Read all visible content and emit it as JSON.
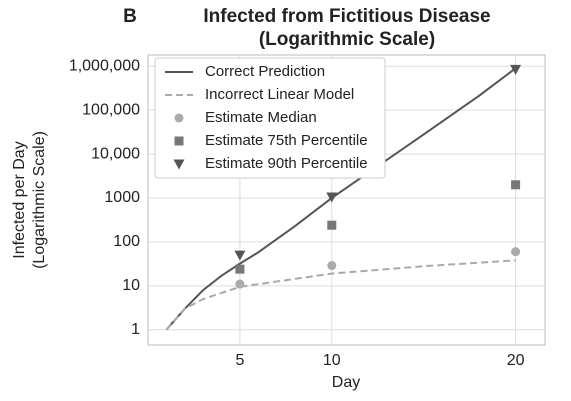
{
  "chart_data": {
    "type": "line",
    "panel_label": "B",
    "title": [
      "Infected from Fictitious Disease",
      "(Logarithmic Scale)"
    ],
    "y_label": [
      "Infected per Day",
      "(Logarithmic Scale)"
    ],
    "x_label": "Day",
    "xlim": [
      0,
      21.6
    ],
    "xticks": [
      5,
      10,
      20
    ],
    "ylim": [
      0.45,
      1800000
    ],
    "log_y": true,
    "grid": true,
    "legend": "upper-left",
    "yticks": [
      1,
      10,
      100,
      1000,
      {
        "value": 10000,
        "label": "10,000"
      },
      {
        "value": 100000,
        "label": "100,000"
      },
      {
        "value": 1000000,
        "label": "1,000,000"
      }
    ],
    "series": [
      {
        "name": "Correct Prediction",
        "type": "line",
        "style": "solid",
        "color": "#555555",
        "x": [
          1,
          2,
          3,
          4,
          5,
          6,
          8,
          10,
          12,
          15,
          18,
          20
        ],
        "values": [
          1,
          3,
          8,
          17,
          32,
          58,
          230,
          1000,
          3800,
          28000,
          210000,
          900000
        ]
      },
      {
        "name": "Incorrect Linear Model",
        "type": "line",
        "style": "dashed",
        "color": "#aaaaaa",
        "x": [
          1,
          2,
          3,
          5,
          10,
          15,
          20
        ],
        "values": [
          1,
          3,
          5,
          9.5,
          19,
          28,
          38
        ]
      },
      {
        "name": "Estimate Median",
        "type": "scatter",
        "marker": "circle",
        "color": "#aaaaaa",
        "x": [
          5,
          10,
          20
        ],
        "values": [
          11,
          29,
          60
        ]
      },
      {
        "name": "Estimate 75th Percentile",
        "type": "scatter",
        "marker": "square",
        "color": "#777777",
        "x": [
          5,
          10,
          20
        ],
        "values": [
          24,
          240,
          2000
        ]
      },
      {
        "name": "Estimate 90th Percentile",
        "type": "scatter",
        "marker": "triangle",
        "color": "#555555",
        "x": [
          5,
          10,
          20
        ],
        "values": [
          50,
          1050,
          850000
        ]
      }
    ]
  }
}
